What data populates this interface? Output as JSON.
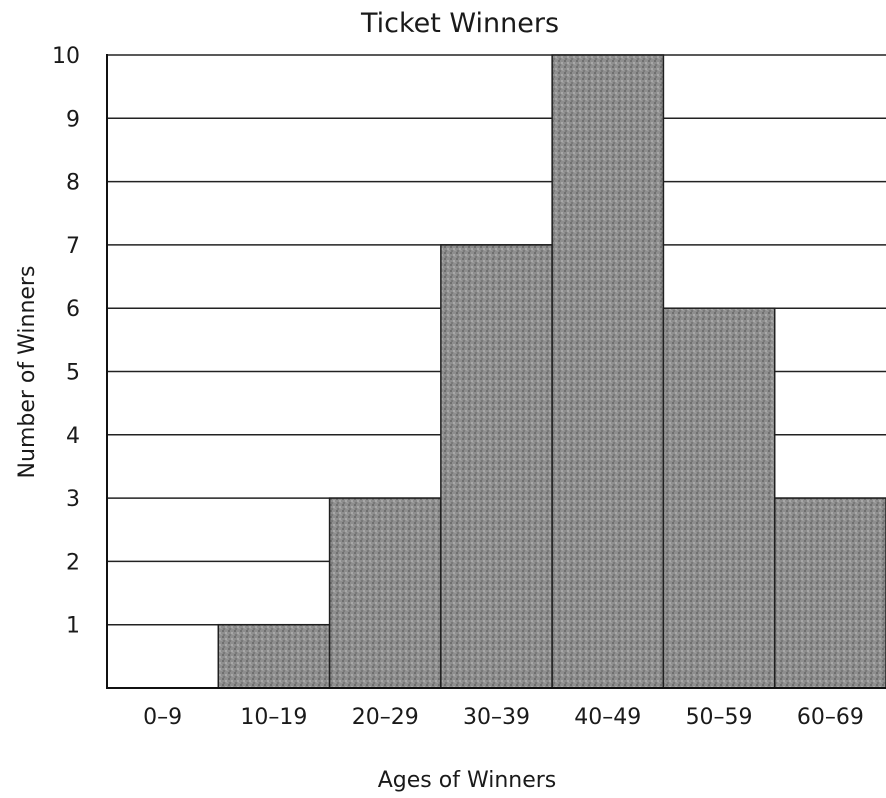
{
  "chart_data": {
    "type": "bar",
    "title": "Ticket Winners",
    "xlabel": "Ages of Winners",
    "ylabel": "Number of Winners",
    "categories": [
      "0–9",
      "10–19",
      "20–29",
      "30–39",
      "40–49",
      "50–59",
      "60–69"
    ],
    "values": [
      0,
      1,
      3,
      7,
      10,
      6,
      3
    ],
    "ylim": [
      0,
      10
    ],
    "yticks": [
      1,
      2,
      3,
      4,
      5,
      6,
      7,
      8,
      9,
      10
    ],
    "grid": true,
    "bar_color": "#8c8c8c",
    "grid_color": "#222222"
  }
}
